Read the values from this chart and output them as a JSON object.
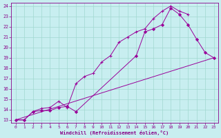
{
  "xlabel": "Windchill (Refroidissement éolien,°C)",
  "bg_color": "#c8eef0",
  "grid_color": "#a0d8d0",
  "line_color": "#990099",
  "xlim": [
    -0.5,
    23.5
  ],
  "ylim": [
    12.7,
    24.3
  ],
  "yticks": [
    13,
    14,
    15,
    16,
    17,
    18,
    19,
    20,
    21,
    22,
    23,
    24
  ],
  "xticks": [
    0,
    1,
    2,
    3,
    4,
    5,
    6,
    7,
    8,
    9,
    10,
    11,
    12,
    13,
    14,
    15,
    16,
    17,
    18,
    19,
    20,
    21,
    22,
    23
  ],
  "line1_x": [
    0,
    1,
    2,
    3,
    4,
    5,
    6,
    7,
    14,
    15,
    16,
    17,
    18,
    19,
    20,
    21,
    22,
    23
  ],
  "line1_y": [
    13,
    13,
    13.8,
    13.9,
    13.9,
    14.2,
    14.3,
    13.8,
    19.2,
    21.5,
    21.8,
    22.2,
    23.8,
    23.2,
    22.2,
    20.8,
    19.5,
    19.0
  ],
  "line2_x": [
    0,
    1,
    2,
    3,
    4,
    5,
    6,
    7,
    8,
    9,
    10,
    11,
    12,
    13,
    14,
    15,
    16,
    17,
    18,
    19,
    20
  ],
  "line2_y": [
    13,
    13,
    13.8,
    14.1,
    14.2,
    14.8,
    14.2,
    16.5,
    17.2,
    17.5,
    18.6,
    19.2,
    20.5,
    21.0,
    21.5,
    21.8,
    22.8,
    23.5,
    24.0,
    23.5,
    23.2
  ],
  "line3_x": [
    0,
    1,
    18,
    19,
    20,
    21,
    22,
    23
  ],
  "line3_y": [
    13,
    13,
    18.0,
    18.5,
    18.8,
    19.0,
    19.2,
    19.0
  ],
  "line1_marker_x": [
    0,
    1,
    2,
    3,
    4,
    5,
    6,
    7,
    14,
    15,
    16,
    17,
    18,
    19,
    20,
    21,
    22,
    23
  ],
  "line2_marker_x": [
    0,
    1,
    2,
    3,
    4,
    5,
    6,
    7,
    8,
    9,
    10,
    11,
    12,
    13,
    14,
    15,
    16,
    17,
    18,
    19,
    20
  ],
  "line3_marker_x": [
    0,
    1,
    18,
    19,
    20,
    21,
    22,
    23
  ]
}
